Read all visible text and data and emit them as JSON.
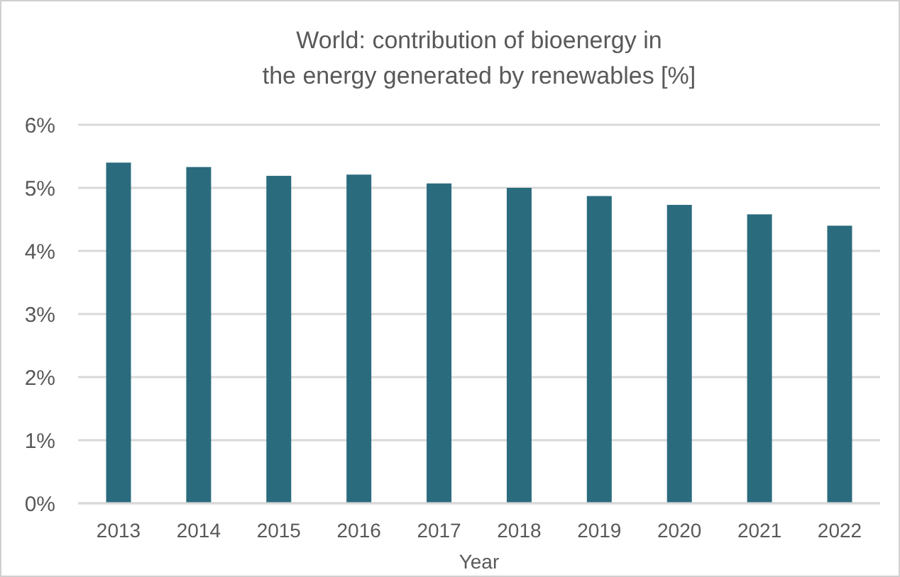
{
  "chart_data": {
    "type": "bar",
    "title": "World: contribution of bioenergy in\nthe energy generated by renewables [%]",
    "xlabel": "Year",
    "categories": [
      "2013",
      "2014",
      "2015",
      "2016",
      "2017",
      "2018",
      "2019",
      "2020",
      "2021",
      "2022"
    ],
    "values": [
      5.4,
      5.33,
      5.19,
      5.21,
      5.07,
      5.0,
      4.87,
      4.73,
      4.58,
      4.4
    ],
    "color": "#2b6b7e",
    "ylim": [
      0,
      6
    ],
    "yticks": [
      {
        "value": 0,
        "label": "0%"
      },
      {
        "value": 1,
        "label": "1%"
      },
      {
        "value": 2,
        "label": "2%"
      },
      {
        "value": 3,
        "label": "3%"
      },
      {
        "value": 4,
        "label": "4%"
      },
      {
        "value": 5,
        "label": "5%"
      },
      {
        "value": 6,
        "label": "6%"
      }
    ],
    "grid": "y"
  }
}
